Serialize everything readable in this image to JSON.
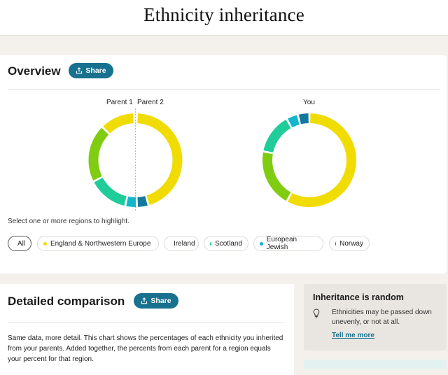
{
  "header": {
    "title": "Ethnicity inheritance"
  },
  "overview": {
    "title": "Overview",
    "share_label": "Share",
    "parent1_label": "Parent 1",
    "parent2_label": "Parent 2",
    "you_label": "You",
    "hint": "Select one or more regions to highlight.",
    "filters": [
      {
        "label": "All",
        "color": "#888888",
        "selected": true
      },
      {
        "label": "England & Northwestern Europe",
        "color": "#f0dc00",
        "selected": false
      },
      {
        "label": "Ireland",
        "color": "#80cc10",
        "selected": false
      },
      {
        "label": "Scotland",
        "color": "#20cc99",
        "selected": false
      },
      {
        "label": "European Jewish",
        "color": "#12b6cc",
        "selected": false
      },
      {
        "label": "Norway",
        "color": "#137a9f",
        "selected": false
      }
    ],
    "donut_parent1": [
      {
        "region": "England & Northwestern Europe",
        "fraction": 0.12
      },
      {
        "region": "Ireland",
        "fraction": 0.2
      },
      {
        "region": "Scotland",
        "fraction": 0.14
      },
      {
        "region": "European Jewish",
        "fraction": 0.04
      }
    ],
    "donut_parent2": [
      {
        "region": "England & Northwestern Europe",
        "fraction": 0.45
      },
      {
        "region": "Norway",
        "fraction": 0.04
      }
    ],
    "donut_you": [
      {
        "region": "England & Northwestern Europe",
        "fraction": 0.58
      },
      {
        "region": "Ireland",
        "fraction": 0.2
      },
      {
        "region": "Scotland",
        "fraction": 0.14
      },
      {
        "region": "European Jewish",
        "fraction": 0.04
      },
      {
        "region": "Norway",
        "fraction": 0.04
      }
    ]
  },
  "detail": {
    "title": "Detailed comparison",
    "share_label": "Share",
    "text": "Same data, more detail. This chart shows the percentages of each ethnicity you inherited from your parents. Added together, the percents from each parent for a region equals your percent for that region."
  },
  "random": {
    "title": "Inheritance is random",
    "text": "Ethnicities may be passed down unevenly, or not at all.",
    "link": "Tell me more"
  },
  "colors": {
    "England & Northwestern Europe": "#f0dc00",
    "Ireland": "#80cc10",
    "Scotland": "#20cc99",
    "European Jewish": "#12b6cc",
    "Norway": "#137a9f",
    "accent": "#18718f"
  }
}
